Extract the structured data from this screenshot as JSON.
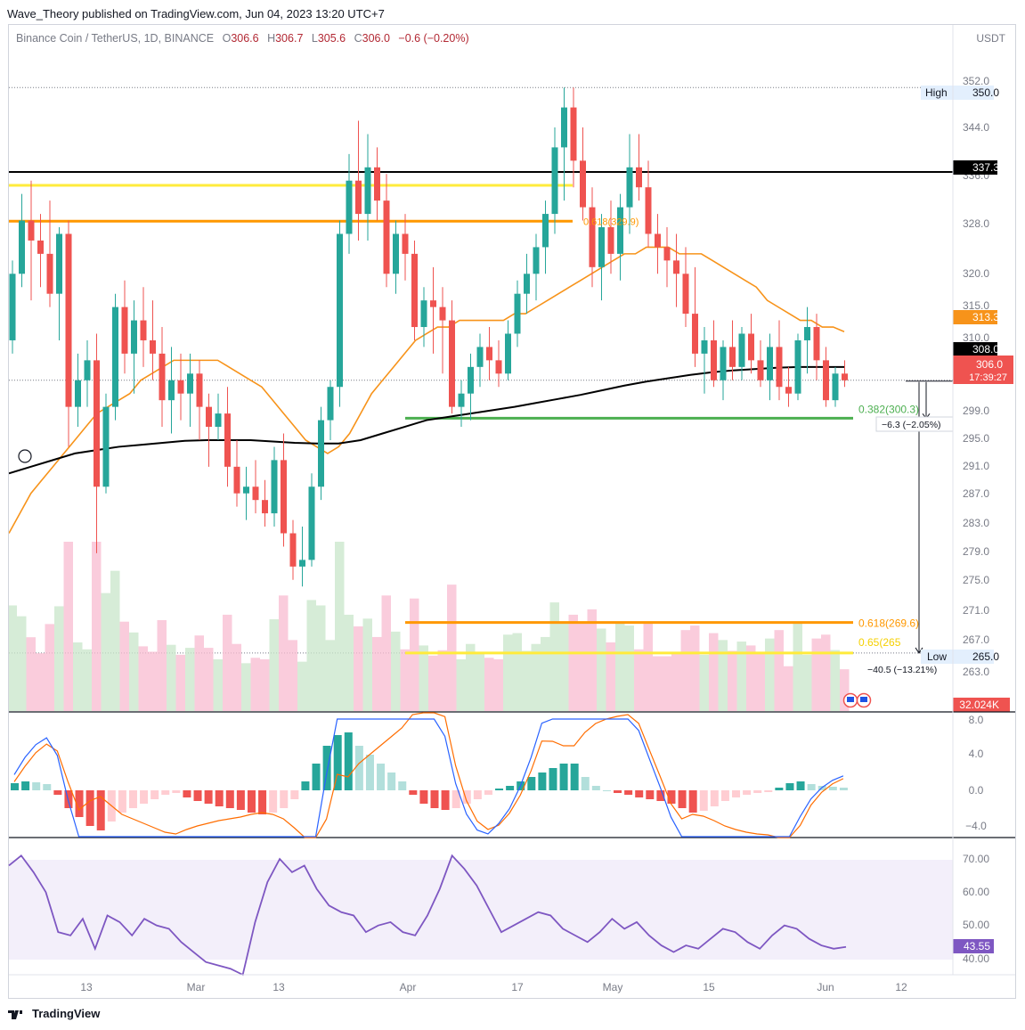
{
  "header": {
    "publisher_line": "Wave_Theory published on TradingView.com, Jun 04, 2023 13:20 UTC+7"
  },
  "legend": {
    "symbol": "Binance Coin / TetherUS, 1D, BINANCE",
    "o_label": "O",
    "o_val": "306.6",
    "h_label": "H",
    "h_val": "306.7",
    "l_label": "L",
    "l_val": "305.6",
    "c_label": "C",
    "c_val": "306.0",
    "change": "−0.6 (−0.20%)"
  },
  "currency": "USDT",
  "footer": {
    "brand": "TradingView"
  },
  "colors": {
    "up": "#26a69a",
    "down": "#ef5350",
    "ma50": "#f7931a",
    "ma200": "#000000",
    "fib": "#4caf50",
    "macd": "#2962ff",
    "signal": "#ff6d00",
    "rsi": "#7e57c2"
  },
  "chart_data": {
    "type": "candlestick",
    "symbol": "BNBUSDT",
    "timeframe": "1D",
    "price_axis": {
      "ticks": [
        "352.0",
        "344.0",
        "336.0",
        "328.0",
        "320.0",
        "315.0",
        "310.0",
        "299.0",
        "295.0",
        "291.0",
        "287.0",
        "283.0",
        "279.0",
        "275.0",
        "271.0",
        "267.0",
        "263.0"
      ]
    },
    "x_ticks": [
      "13",
      "Mar",
      "13",
      "Apr",
      "17",
      "May",
      "15",
      "Jun",
      "12"
    ],
    "price_labels": {
      "high_label": "High",
      "high": "350.0",
      "low_label": "Low",
      "low": "265.0",
      "resistance": "337.3",
      "ma50": "313.3",
      "ma200": "308.0",
      "last": "306.0",
      "countdown": "17:39:27",
      "volume": "32.024K"
    },
    "horizontal_lines": [
      {
        "price": 337.3,
        "color": "#000000"
      },
      {
        "price": 335.3,
        "color": "#ffeb3b"
      },
      {
        "price": 329.9,
        "color": "#ff9800"
      },
      {
        "price": 300.3,
        "color": "#4caf50"
      },
      {
        "price": 269.6,
        "color": "#ff9800"
      },
      {
        "price": 265.0,
        "color": "#ffeb3b"
      }
    ],
    "fib_labels": [
      {
        "text": "0.382(300.3)"
      },
      {
        "text": "0.618(269.6)"
      },
      {
        "text": "0.65(265"
      },
      {
        "text": "0.618(329.9)"
      }
    ],
    "measures": [
      "−6.3 (−2.05%)",
      "−40.5 (−13.21%)"
    ],
    "candles": [
      [
        312,
        324,
        310,
        322
      ],
      [
        322,
        334,
        320,
        330
      ],
      [
        330,
        336,
        318,
        327
      ],
      [
        327,
        331,
        320,
        325
      ],
      [
        325,
        333,
        317,
        319
      ],
      [
        319,
        329,
        312,
        328
      ],
      [
        328,
        330,
        296,
        302
      ],
      [
        302,
        310,
        299,
        306
      ],
      [
        306,
        312,
        302,
        309
      ],
      [
        309,
        313,
        280,
        290
      ],
      [
        290,
        304,
        289,
        302
      ],
      [
        302,
        319,
        300,
        317
      ],
      [
        317,
        321,
        307,
        310
      ],
      [
        310,
        318,
        304,
        315
      ],
      [
        315,
        320,
        308,
        312
      ],
      [
        312,
        318,
        306,
        310
      ],
      [
        310,
        314,
        299,
        303
      ],
      [
        303,
        311,
        298,
        306
      ],
      [
        306,
        310,
        300,
        304
      ],
      [
        304,
        310,
        299,
        307
      ],
      [
        307,
        309,
        297,
        302
      ],
      [
        302,
        304,
        293,
        299
      ],
      [
        299,
        304,
        297,
        301
      ],
      [
        301,
        305,
        290,
        293
      ],
      [
        293,
        297,
        287,
        289
      ],
      [
        289,
        293,
        285,
        290
      ],
      [
        290,
        294,
        286,
        288
      ],
      [
        288,
        291,
        284,
        286
      ],
      [
        286,
        296,
        284,
        294
      ],
      [
        294,
        298,
        281,
        283
      ],
      [
        283,
        285,
        276,
        278
      ],
      [
        278,
        284,
        275,
        279
      ],
      [
        279,
        292,
        278,
        290
      ],
      [
        290,
        302,
        288,
        300
      ],
      [
        300,
        306,
        297,
        305
      ],
      [
        305,
        330,
        302,
        328
      ],
      [
        328,
        340,
        325,
        336
      ],
      [
        336,
        345,
        327,
        331
      ],
      [
        331,
        343,
        327,
        338
      ],
      [
        338,
        341,
        330,
        333
      ],
      [
        333,
        337,
        320,
        322
      ],
      [
        322,
        330,
        319,
        328
      ],
      [
        328,
        331,
        321,
        325
      ],
      [
        325,
        327,
        312,
        314
      ],
      [
        314,
        320,
        311,
        318
      ],
      [
        318,
        323,
        310,
        317
      ],
      [
        317,
        320,
        307,
        315
      ],
      [
        315,
        318,
        301,
        302
      ],
      [
        302,
        306,
        299,
        304
      ],
      [
        304,
        310,
        300,
        308
      ],
      [
        308,
        313,
        305,
        311
      ],
      [
        311,
        314,
        306,
        309
      ],
      [
        309,
        312,
        305,
        307
      ],
      [
        307,
        315,
        306,
        313
      ],
      [
        313,
        321,
        311,
        319
      ],
      [
        319,
        325,
        316,
        322
      ],
      [
        322,
        328,
        318,
        326
      ],
      [
        326,
        333,
        322,
        331
      ],
      [
        331,
        344,
        328,
        341
      ],
      [
        341,
        350,
        333,
        347
      ],
      [
        347,
        350,
        335,
        339
      ],
      [
        339,
        344,
        330,
        332
      ],
      [
        332,
        335,
        320,
        323
      ],
      [
        323,
        331,
        318,
        329
      ],
      [
        329,
        333,
        322,
        325
      ],
      [
        325,
        334,
        321,
        332
      ],
      [
        332,
        343,
        328,
        338
      ],
      [
        338,
        343,
        333,
        335
      ],
      [
        335,
        339,
        326,
        328
      ],
      [
        328,
        331,
        322,
        326
      ],
      [
        326,
        329,
        320,
        324
      ],
      [
        324,
        328,
        317,
        322
      ],
      [
        322,
        326,
        314,
        316
      ],
      [
        316,
        323,
        308,
        310
      ],
      [
        310,
        314,
        304,
        312
      ],
      [
        312,
        315,
        305,
        306
      ],
      [
        306,
        312,
        303,
        311
      ],
      [
        311,
        315,
        306,
        308
      ],
      [
        308,
        314,
        306,
        313
      ],
      [
        313,
        316,
        307,
        309
      ],
      [
        309,
        312,
        305,
        306
      ],
      [
        306,
        313,
        303,
        311
      ],
      [
        311,
        315,
        303,
        305
      ],
      [
        305,
        308,
        302,
        304
      ],
      [
        304,
        313,
        303,
        312
      ],
      [
        312,
        317,
        307,
        314
      ],
      [
        314,
        316,
        306,
        309
      ],
      [
        309,
        311,
        302,
        303
      ],
      [
        303,
        308,
        302,
        307
      ],
      [
        307,
        309,
        305,
        306
      ]
    ],
    "ma50": [
      283,
      286,
      289,
      291,
      293,
      295,
      297,
      299,
      301,
      302,
      303,
      304,
      306,
      307,
      308,
      309,
      309,
      309,
      309,
      309,
      308,
      307,
      306,
      305,
      303,
      301,
      299,
      297,
      296,
      295,
      296,
      298,
      301,
      304,
      306,
      308,
      310,
      312,
      313,
      314,
      314,
      315,
      315,
      315,
      315,
      315,
      316,
      316,
      317,
      318,
      319,
      320,
      321,
      322,
      323,
      324,
      325,
      325,
      326,
      326,
      326,
      325,
      325,
      325,
      324,
      323,
      322,
      321,
      320,
      318,
      317,
      316,
      315,
      315,
      314,
      314,
      313.3
    ],
    "ma200": [
      292,
      293,
      294,
      295,
      295.5,
      296,
      296.3,
      296.6,
      296.9,
      297,
      297,
      297,
      296.8,
      296.6,
      296.5,
      296.5,
      297,
      298,
      299,
      300,
      300.5,
      301,
      301.5,
      302,
      302.6,
      303.2,
      303.8,
      304.5,
      305.2,
      305.8,
      306.3,
      306.8,
      307.2,
      307.5,
      307.7,
      307.9,
      308,
      308,
      308
    ],
    "macd_ticks": [
      "8.0",
      "4.0",
      "0.0",
      "−4.0"
    ],
    "macd_hist": [
      0.8,
      1.0,
      0.9,
      0.7,
      -0.5,
      -2,
      -3,
      -4,
      -4.5,
      -3.5,
      -2.5,
      -2,
      -1.5,
      -1,
      -0.5,
      -0.3,
      -0.8,
      -1.2,
      -1.5,
      -1.8,
      -2,
      -2.2,
      -2.5,
      -2.7,
      -2.5,
      -2,
      -1,
      1,
      3,
      5,
      6.2,
      6.5,
      5,
      4,
      3,
      2,
      1,
      -0.5,
      -1.5,
      -2,
      -2.2,
      -2,
      -1.5,
      -1,
      -0.5,
      0.2,
      0.5,
      1,
      1.5,
      2,
      2.5,
      3,
      3,
      1.5,
      0.5,
      0,
      -0.3,
      -0.5,
      -0.8,
      -1,
      -1.2,
      -1.5,
      -2,
      -2.5,
      -2.3,
      -1.8,
      -1.2,
      -0.8,
      -0.5,
      -0.3,
      -0.2,
      0.3,
      0.8,
      1,
      0.7,
      0.5,
      0.4,
      0.3
    ],
    "rsi_ticks": [
      "70.00",
      "60.00",
      "50.00",
      "40.00"
    ],
    "rsi_value": "43.55",
    "rsi": [
      68,
      71,
      66,
      60,
      48,
      47,
      52,
      43,
      53,
      51,
      47,
      52,
      50,
      49,
      45,
      42,
      39,
      38,
      37,
      34,
      51,
      63,
      70,
      66,
      68,
      61,
      56,
      54,
      53,
      48,
      50,
      51,
      48,
      47,
      53,
      61,
      71,
      67,
      62,
      55,
      48,
      50,
      52,
      54,
      53,
      49,
      47,
      45,
      48,
      52,
      49,
      51,
      47,
      44,
      42,
      44,
      43,
      46,
      49,
      48,
      45,
      43,
      47,
      50,
      49,
      46,
      44,
      43,
      43.55
    ]
  }
}
